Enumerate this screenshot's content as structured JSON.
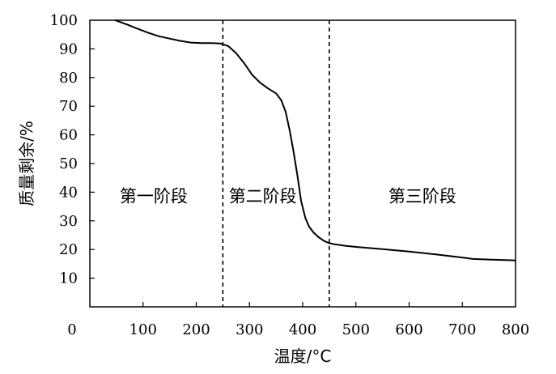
{
  "chart_data": {
    "type": "line",
    "title": "",
    "xlabel": "温度/°C",
    "ylabel": "质量剩余/%",
    "xlim": [
      0,
      800
    ],
    "ylim": [
      0,
      100
    ],
    "x_ticks": [
      0,
      100,
      200,
      300,
      400,
      500,
      600,
      700,
      800
    ],
    "y_ticks": [
      10,
      20,
      30,
      40,
      50,
      60,
      70,
      80,
      90,
      100
    ],
    "grid": false,
    "series": [
      {
        "color": "#000000",
        "points": [
          [
            48,
            100
          ],
          [
            70,
            98.5
          ],
          [
            90,
            97
          ],
          [
            110,
            95.6
          ],
          [
            130,
            94.4
          ],
          [
            150,
            93.6
          ],
          [
            170,
            92.8
          ],
          [
            190,
            92.2
          ],
          [
            210,
            92.0
          ],
          [
            230,
            92.0
          ],
          [
            245,
            91.9
          ],
          [
            260,
            91.0
          ],
          [
            275,
            88.5
          ],
          [
            290,
            85.0
          ],
          [
            305,
            81.0
          ],
          [
            320,
            78.2
          ],
          [
            335,
            76.2
          ],
          [
            350,
            74.5
          ],
          [
            360,
            72.0
          ],
          [
            368,
            68.0
          ],
          [
            375,
            62.0
          ],
          [
            382,
            55.0
          ],
          [
            390,
            46.0
          ],
          [
            397,
            37.0
          ],
          [
            405,
            31.0
          ],
          [
            412,
            28.0
          ],
          [
            420,
            26.0
          ],
          [
            430,
            24.3
          ],
          [
            440,
            23.0
          ],
          [
            450,
            22.2
          ],
          [
            460,
            21.8
          ],
          [
            480,
            21.3
          ],
          [
            500,
            20.9
          ],
          [
            550,
            20.1
          ],
          [
            600,
            19.3
          ],
          [
            650,
            18.3
          ],
          [
            700,
            17.2
          ],
          [
            720,
            16.7
          ],
          [
            750,
            16.5
          ],
          [
            800,
            16.2
          ]
        ]
      }
    ],
    "stage_dividers": [
      250,
      450
    ],
    "annotations": [
      {
        "text": "第一阶段",
        "x": 120,
        "y": 38.5
      },
      {
        "text": "第二阶段",
        "x": 325,
        "y": 38.5
      },
      {
        "text": "第三阶段",
        "x": 625,
        "y": 38.5
      }
    ]
  }
}
